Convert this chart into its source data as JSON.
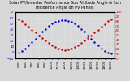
{
  "title": "Solar PV/Inverter Performance Sun Altitude Angle & Sun Incidence Angle on PV Panels",
  "sun_altitude_x": [
    5.0,
    5.5,
    6.0,
    6.5,
    7.0,
    7.5,
    8.0,
    8.5,
    9.0,
    9.5,
    10.0,
    10.5,
    11.0,
    11.5,
    12.0,
    12.5,
    13.0,
    13.5,
    14.0,
    14.5,
    15.0,
    15.5,
    16.0,
    16.5,
    17.0,
    17.5,
    18.0,
    18.5,
    19.0
  ],
  "sun_altitude_y": [
    0,
    3,
    7,
    12,
    18,
    24,
    30,
    36,
    41,
    46,
    50,
    53,
    55,
    56,
    56,
    55,
    53,
    50,
    46,
    41,
    36,
    30,
    24,
    18,
    12,
    7,
    3,
    0,
    -2
  ],
  "sun_incidence_x": [
    5.0,
    5.5,
    6.0,
    6.5,
    7.0,
    7.5,
    8.0,
    8.5,
    9.0,
    9.5,
    10.0,
    10.5,
    11.0,
    11.5,
    12.0,
    12.5,
    13.0,
    13.5,
    14.0,
    14.5,
    15.0,
    15.5,
    16.0,
    16.5,
    17.0,
    17.5,
    18.0,
    18.5,
    19.0
  ],
  "sun_incidence_y": [
    85,
    80,
    74,
    68,
    62,
    56,
    50,
    44,
    38,
    33,
    28,
    24,
    21,
    19,
    18,
    19,
    21,
    24,
    28,
    33,
    38,
    44,
    50,
    56,
    62,
    68,
    74,
    80,
    85
  ],
  "altitude_color": "#0000cc",
  "incidence_color": "#cc0000",
  "ylim_left": [
    -10,
    70
  ],
  "ylim_right": [
    0,
    100
  ],
  "xlim": [
    4.5,
    19.5
  ],
  "bg_color": "#d8d8d8",
  "grid_color": "#ffffff",
  "title_fontsize": 3.5,
  "tick_fontsize": 2.8,
  "ytick_left": [
    -10,
    0,
    10,
    20,
    30,
    40,
    50,
    60,
    70
  ],
  "ytick_right": [
    0,
    10,
    20,
    30,
    40,
    50,
    60,
    70,
    80,
    90,
    100
  ],
  "xtick_positions": [
    5,
    6,
    7,
    8,
    9,
    10,
    11,
    12,
    13,
    14,
    15,
    16,
    17,
    18,
    19
  ],
  "xtick_labels": [
    "5:00",
    "6:00",
    "7:00",
    "8:00",
    "9:00",
    "10:00",
    "11:00",
    "12:00",
    "13:00",
    "14:00",
    "15:00",
    "16:00",
    "17:00",
    "18:00",
    "19:00"
  ]
}
